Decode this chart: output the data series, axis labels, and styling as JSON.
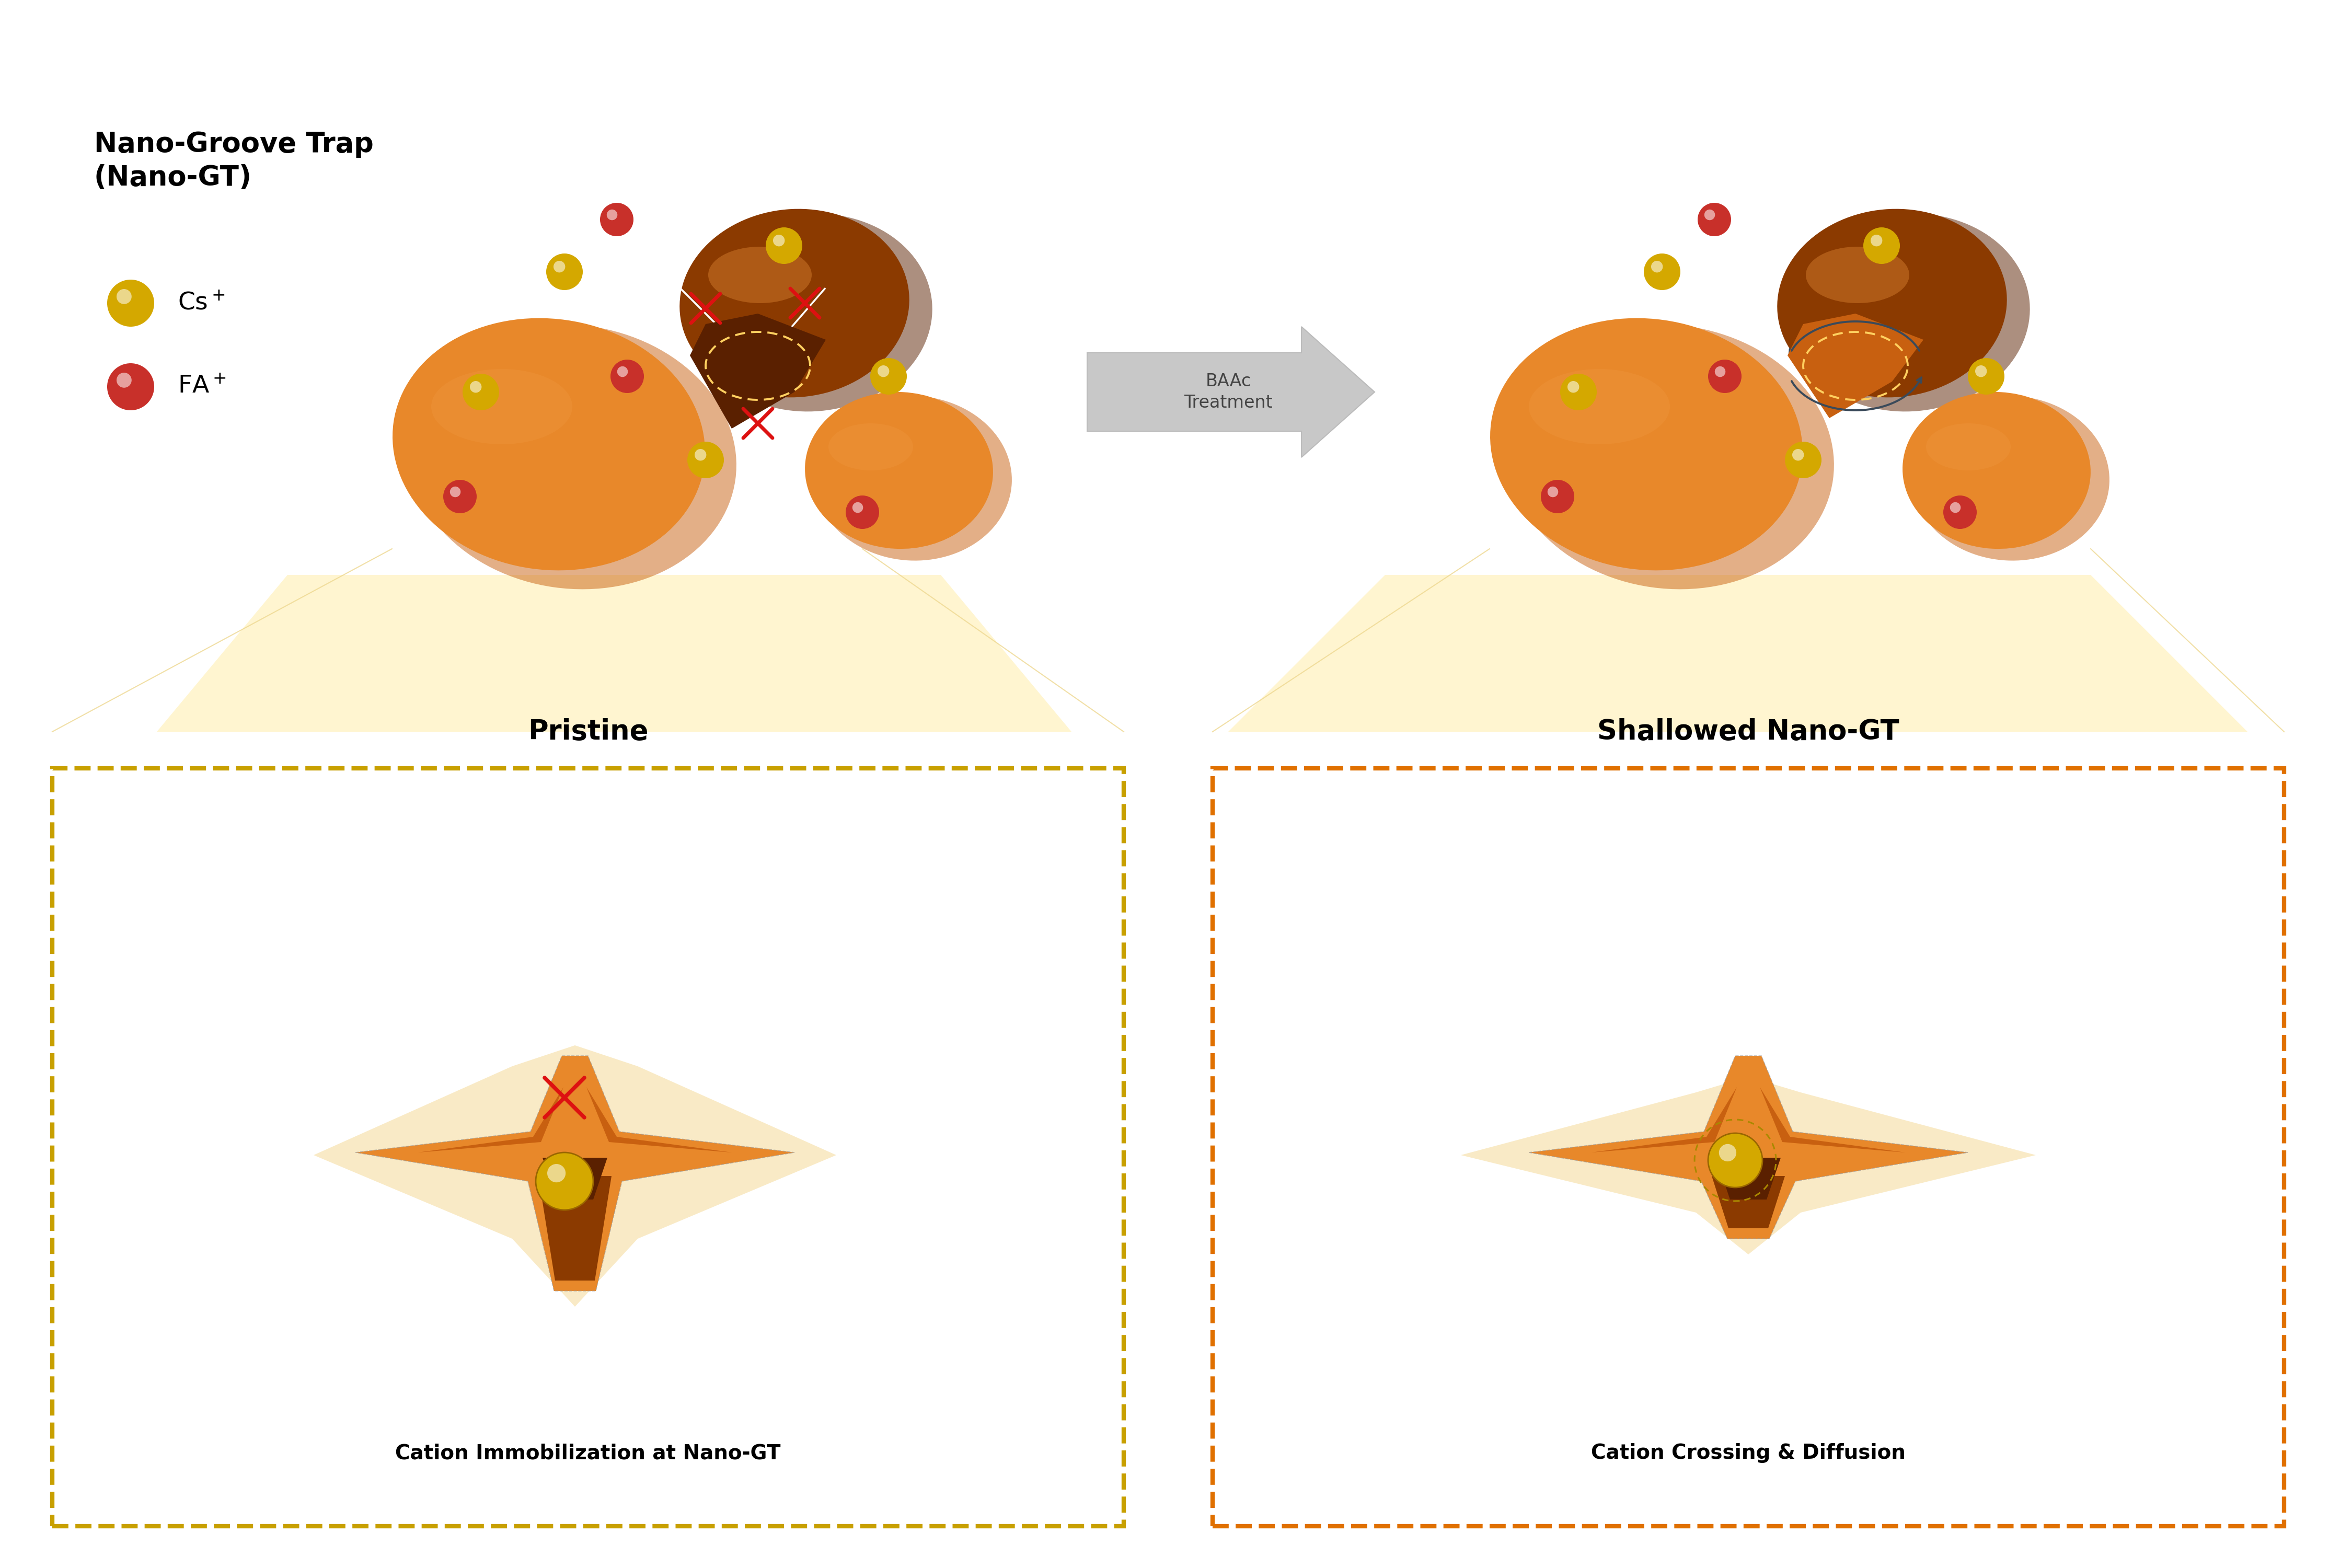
{
  "bg_color": "#ffffff",
  "cs_color": "#D4A800",
  "fa_color": "#C8302A",
  "arrow_label_line1": "BAAc",
  "arrow_label_line2": "Treatment",
  "pristine_label": "Pristine",
  "shallowed_label": "Shallowed Nano-GT",
  "immob_label": "Cation Immobilization at Nano-GT",
  "diffuse_label": "Cation Crossing & Diffusion",
  "c_light": "#E8882A",
  "c_light2": "#F09840",
  "c_mid": "#C86010",
  "c_dark": "#8B3A00",
  "c_vdark": "#5A2000",
  "box_left_color": "#C8A000",
  "box_right_color": "#E07000",
  "fan_color": "#FFF5D0",
  "groove_arrow_color": "#445566",
  "red_x_color": "#DD1111"
}
